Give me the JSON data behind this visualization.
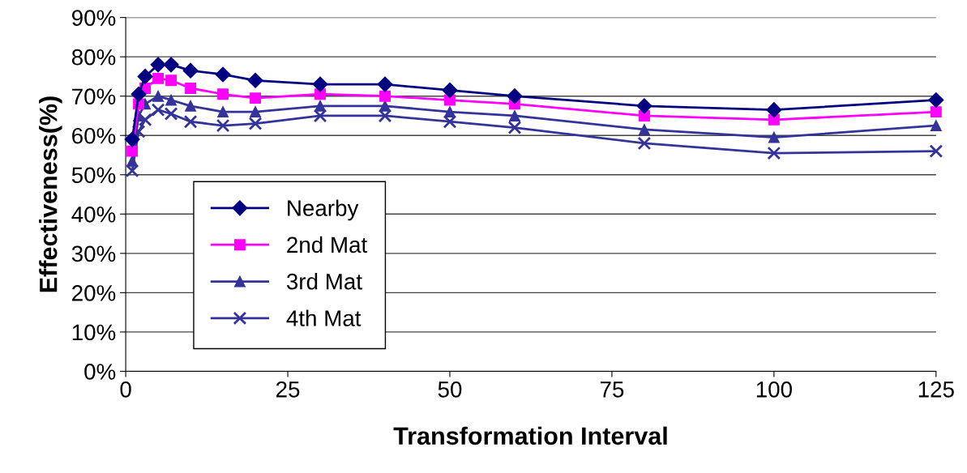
{
  "chart_data": {
    "type": "line",
    "xlabel": "Transformation Interval",
    "ylabel": "Effectiveness(%)",
    "x": [
      1,
      2,
      3,
      5,
      7,
      10,
      15,
      20,
      30,
      40,
      50,
      60,
      80,
      100,
      125
    ],
    "xlim": [
      0,
      125
    ],
    "xticks": [
      0,
      25,
      50,
      75,
      100,
      125
    ],
    "ylim": [
      0,
      90
    ],
    "yticks": [
      {
        "value": 0,
        "label": "0%"
      },
      {
        "value": 10,
        "label": "10%"
      },
      {
        "value": 20,
        "label": "20%"
      },
      {
        "value": 30,
        "label": "30%"
      },
      {
        "value": 40,
        "label": "40%"
      },
      {
        "value": 50,
        "label": "50%"
      },
      {
        "value": 60,
        "label": "60%"
      },
      {
        "value": 70,
        "label": "70%"
      },
      {
        "value": 80,
        "label": "80%"
      },
      {
        "value": 90,
        "label": "90%"
      }
    ],
    "grid": "y",
    "legend": "left",
    "line_style": "solid",
    "series": [
      {
        "name": "Nearby",
        "color": "#000080",
        "marker": "diamond",
        "values": [
          59,
          70.5,
          75,
          78,
          78,
          76.5,
          75.5,
          74,
          73,
          73,
          71.5,
          70,
          67.5,
          66.5,
          69
        ]
      },
      {
        "name": "2nd Mat",
        "color": "#ff00ff",
        "marker": "square",
        "values": [
          56,
          68,
          72,
          74.5,
          74,
          72,
          70.5,
          69.5,
          70.5,
          70,
          69,
          68,
          65,
          64,
          66
        ]
      },
      {
        "name": "3rd Mat",
        "color": "#333399",
        "marker": "triangle",
        "values": [
          53.5,
          65,
          68,
          70,
          69,
          67.5,
          66,
          66,
          67.5,
          67.5,
          66,
          65,
          61.5,
          59.5,
          62.5
        ]
      },
      {
        "name": "4th Mat",
        "color": "#333399",
        "marker": "cross",
        "values": [
          51,
          61,
          64,
          66.5,
          65.5,
          63.5,
          62.5,
          63,
          65,
          65,
          63.5,
          62,
          58,
          55.5,
          56
        ]
      }
    ]
  }
}
